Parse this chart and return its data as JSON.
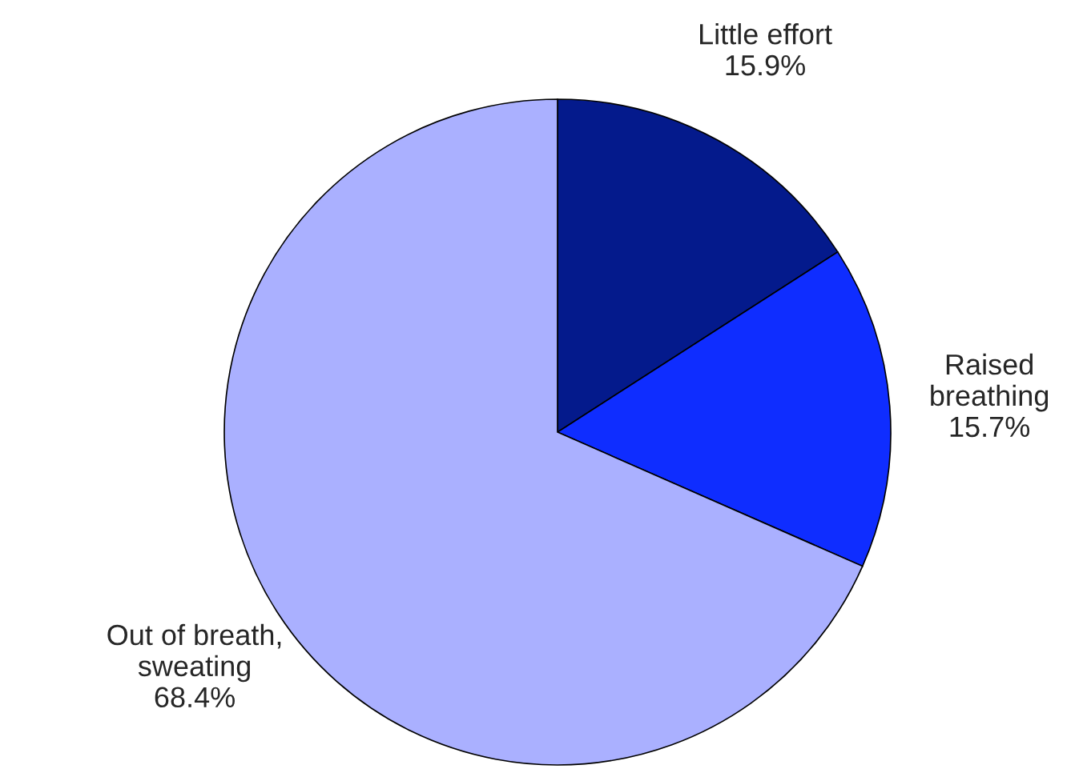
{
  "chart_data": {
    "type": "pie",
    "categories": [
      "Little effort",
      "Raised\nbreathing",
      "Out of breath,\nsweating"
    ],
    "values": [
      15.9,
      15.7,
      68.4
    ],
    "value_labels": [
      "15.9%",
      "15.7%",
      "68.4%"
    ],
    "colors": [
      "#041a8c",
      "#0f2dff",
      "#aab0ff"
    ]
  }
}
